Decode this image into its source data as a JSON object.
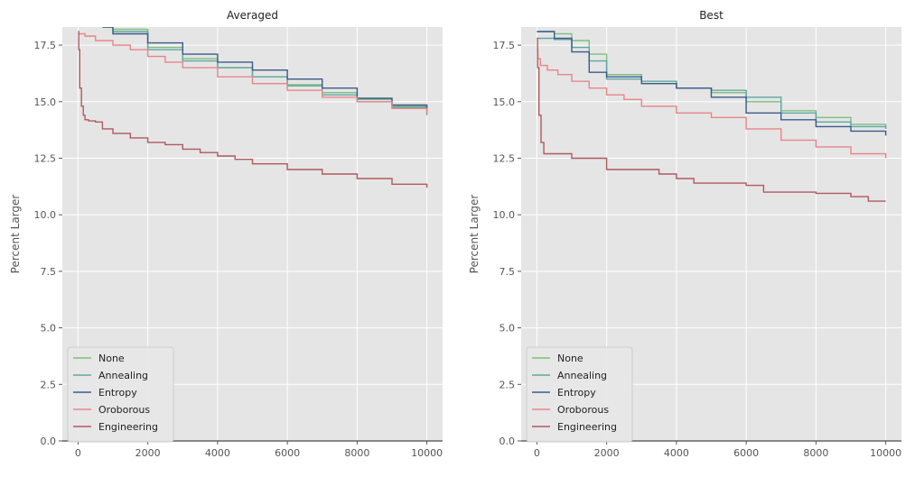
{
  "chart_data": [
    {
      "type": "line",
      "title": "Averaged",
      "xlabel": "",
      "ylabel": "Percent Larger",
      "xlim": [
        -450,
        10450
      ],
      "ylim": [
        0,
        18.3
      ],
      "xticks": [
        0,
        2000,
        4000,
        6000,
        8000,
        10000
      ],
      "xtick_labels": [
        "0",
        "2000",
        "4000",
        "6000",
        "8000",
        "10000"
      ],
      "yticks": [
        0,
        2.5,
        5,
        7.5,
        10,
        12.5,
        15,
        17.5
      ],
      "ytick_labels": [
        "0.0",
        "2.5",
        "5.0",
        "7.5",
        "10.0",
        "12.5",
        "15.0",
        "17.5"
      ],
      "grid": true,
      "legend": "lower-left",
      "step": true,
      "series": [
        {
          "name": "None",
          "color": "#7fbf7f",
          "x": [
            700,
            1000,
            2000,
            3000,
            4000,
            5000,
            6000,
            7000,
            8000,
            9000,
            10000
          ],
          "y": [
            18.3,
            18.2,
            17.4,
            16.9,
            16.5,
            16.1,
            15.75,
            15.4,
            15.1,
            14.8,
            14.5
          ]
        },
        {
          "name": "Annealing",
          "color": "#5fa8a0",
          "x": [
            800,
            1000,
            2000,
            3000,
            4000,
            5000,
            6000,
            7000,
            8000,
            9000,
            10000
          ],
          "y": [
            18.3,
            18.1,
            17.3,
            16.8,
            16.5,
            16.1,
            15.7,
            15.3,
            15.0,
            14.75,
            14.4
          ]
        },
        {
          "name": "Entropy",
          "color": "#3b5b8c",
          "x": [
            700,
            1000,
            2000,
            3000,
            4000,
            5000,
            6000,
            7000,
            8000,
            9000,
            10000
          ],
          "y": [
            18.3,
            18.0,
            17.6,
            17.1,
            16.75,
            16.4,
            16.0,
            15.6,
            15.15,
            14.85,
            14.7
          ]
        },
        {
          "name": "Oroborous",
          "color": "#e8858a",
          "x": [
            0,
            50,
            200,
            500,
            1000,
            1500,
            2000,
            2500,
            3000,
            4000,
            5000,
            6000,
            7000,
            8000,
            9000,
            10000
          ],
          "y": [
            18.0,
            18.0,
            17.9,
            17.7,
            17.5,
            17.3,
            17.0,
            16.75,
            16.5,
            16.1,
            15.8,
            15.5,
            15.2,
            15.0,
            14.7,
            14.5
          ]
        },
        {
          "name": "Engineering",
          "color": "#b05a5f",
          "x": [
            0,
            20,
            50,
            100,
            150,
            200,
            300,
            500,
            700,
            1000,
            1500,
            2000,
            2500,
            3000,
            3500,
            4000,
            4500,
            5000,
            6000,
            7000,
            8000,
            9000,
            10000
          ],
          "y": [
            18.1,
            17.3,
            15.6,
            14.8,
            14.4,
            14.2,
            14.15,
            14.1,
            13.8,
            13.6,
            13.4,
            13.2,
            13.1,
            12.9,
            12.75,
            12.6,
            12.45,
            12.25,
            12.0,
            11.8,
            11.6,
            11.35,
            11.2
          ]
        }
      ]
    },
    {
      "type": "line",
      "title": "Best",
      "xlabel": "",
      "ylabel": "Percent Larger",
      "xlim": [
        -450,
        10450
      ],
      "ylim": [
        0,
        18.3
      ],
      "xticks": [
        0,
        2000,
        4000,
        6000,
        8000,
        10000
      ],
      "xtick_labels": [
        "0",
        "2000",
        "4000",
        "6000",
        "8000",
        "10000"
      ],
      "yticks": [
        0,
        2.5,
        5,
        7.5,
        10,
        12.5,
        15,
        17.5
      ],
      "ytick_labels": [
        "0.0",
        "2.5",
        "5.0",
        "7.5",
        "10.0",
        "12.5",
        "15.0",
        "17.5"
      ],
      "grid": true,
      "legend": "lower-left",
      "step": true,
      "series": [
        {
          "name": "None",
          "color": "#7fbf7f",
          "x": [
            0,
            500,
            1000,
            1500,
            2000,
            3000,
            4000,
            5000,
            6000,
            7000,
            8000,
            9000,
            10000
          ],
          "y": [
            18.1,
            18.0,
            17.7,
            17.1,
            16.2,
            15.8,
            15.6,
            15.4,
            15.0,
            14.6,
            14.3,
            14.0,
            13.8
          ]
        },
        {
          "name": "Annealing",
          "color": "#5fa8a0",
          "x": [
            0,
            500,
            1000,
            1500,
            2000,
            3000,
            4000,
            5000,
            6000,
            7000,
            8000,
            9000,
            10000
          ],
          "y": [
            17.8,
            17.75,
            17.4,
            16.8,
            16.0,
            15.9,
            15.6,
            15.5,
            15.2,
            14.5,
            14.1,
            13.9,
            13.8
          ]
        },
        {
          "name": "Entropy",
          "color": "#3b5b8c",
          "x": [
            0,
            500,
            1000,
            1500,
            2000,
            3000,
            4000,
            5000,
            6000,
            7000,
            8000,
            9000,
            10000
          ],
          "y": [
            18.1,
            17.8,
            17.2,
            16.3,
            16.1,
            15.8,
            15.6,
            15.2,
            14.5,
            14.2,
            13.9,
            13.7,
            13.5
          ]
        },
        {
          "name": "Oroborous",
          "color": "#e8858a",
          "x": [
            0,
            30,
            100,
            300,
            600,
            1000,
            1500,
            2000,
            2500,
            3000,
            4000,
            5000,
            6000,
            7000,
            8000,
            9000,
            10000
          ],
          "y": [
            17.3,
            16.9,
            16.6,
            16.4,
            16.2,
            15.9,
            15.6,
            15.3,
            15.1,
            14.8,
            14.5,
            14.3,
            13.8,
            13.3,
            13.0,
            12.7,
            12.5
          ]
        },
        {
          "name": "Engineering",
          "color": "#b05a5f",
          "x": [
            0,
            20,
            60,
            120,
            200,
            1000,
            2000,
            3000,
            3500,
            4000,
            4500,
            5000,
            6000,
            6500,
            7000,
            8000,
            9000,
            9500,
            10000
          ],
          "y": [
            17.8,
            16.5,
            14.4,
            13.2,
            12.7,
            12.5,
            12.0,
            12.0,
            11.8,
            11.6,
            11.4,
            11.4,
            11.3,
            11.0,
            11.0,
            10.95,
            10.8,
            10.6,
            10.6
          ]
        }
      ]
    }
  ]
}
